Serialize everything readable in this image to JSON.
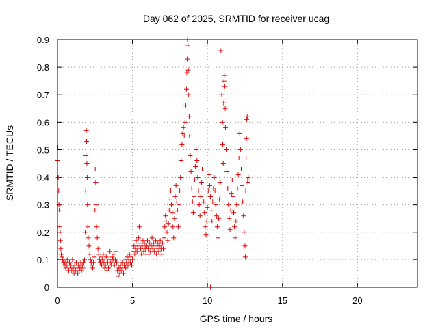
{
  "chart_data": {
    "type": "scatter",
    "title": "Day 062 of 2025, SRMTID for receiver ucag",
    "xlabel": "GPS time / hours",
    "ylabel": "SRMTID / TECUs",
    "xlim": [
      0,
      24
    ],
    "ylim": [
      0,
      0.9
    ],
    "xticks": [
      0,
      5,
      10,
      15,
      20
    ],
    "yticks": [
      0,
      0.1,
      0.2,
      0.3,
      0.4,
      0.5,
      0.6,
      0.7,
      0.8,
      0.9
    ],
    "grid": true,
    "marker": "plus",
    "color": "#e00000",
    "series": [
      {
        "name": "SRMTID",
        "points": [
          [
            0.0,
            0.46
          ],
          [
            0.02,
            0.51
          ],
          [
            0.05,
            0.4
          ],
          [
            0.08,
            0.35
          ],
          [
            0.1,
            0.3
          ],
          [
            0.12,
            0.28
          ],
          [
            0.15,
            0.22
          ],
          [
            0.18,
            0.2
          ],
          [
            0.2,
            0.17
          ],
          [
            0.22,
            0.14
          ],
          [
            0.25,
            0.12
          ],
          [
            0.3,
            0.11
          ],
          [
            0.35,
            0.1
          ],
          [
            0.4,
            0.09
          ],
          [
            0.45,
            0.08
          ],
          [
            0.5,
            0.09
          ],
          [
            0.55,
            0.07
          ],
          [
            0.6,
            0.08
          ],
          [
            0.65,
            0.1
          ],
          [
            0.7,
            0.08
          ],
          [
            0.75,
            0.06
          ],
          [
            0.8,
            0.09
          ],
          [
            0.85,
            0.07
          ],
          [
            0.9,
            0.08
          ],
          [
            0.95,
            0.06
          ],
          [
            1.0,
            0.1
          ],
          [
            1.05,
            0.07
          ],
          [
            1.1,
            0.05
          ],
          [
            1.15,
            0.08
          ],
          [
            1.2,
            0.06
          ],
          [
            1.25,
            0.09
          ],
          [
            1.3,
            0.07
          ],
          [
            1.35,
            0.05
          ],
          [
            1.4,
            0.08
          ],
          [
            1.45,
            0.06
          ],
          [
            1.5,
            0.07
          ],
          [
            1.55,
            0.09
          ],
          [
            1.6,
            0.06
          ],
          [
            1.65,
            0.08
          ],
          [
            1.7,
            0.07
          ],
          [
            1.75,
            0.09
          ],
          [
            1.8,
            0.1
          ],
          [
            1.85,
            0.2
          ],
          [
            1.88,
            0.35
          ],
          [
            1.9,
            0.48
          ],
          [
            1.92,
            0.57
          ],
          [
            1.94,
            0.53
          ],
          [
            1.96,
            0.45
          ],
          [
            1.98,
            0.4
          ],
          [
            2.0,
            0.3
          ],
          [
            2.02,
            0.22
          ],
          [
            2.05,
            0.18
          ],
          [
            2.1,
            0.15
          ],
          [
            2.15,
            0.12
          ],
          [
            2.2,
            0.1
          ],
          [
            2.25,
            0.09
          ],
          [
            2.3,
            0.08
          ],
          [
            2.35,
            0.07
          ],
          [
            2.4,
            0.09
          ],
          [
            2.45,
            0.11
          ],
          [
            2.5,
            0.28
          ],
          [
            2.52,
            0.43
          ],
          [
            2.55,
            0.38
          ],
          [
            2.58,
            0.3
          ],
          [
            2.6,
            0.22
          ],
          [
            2.65,
            0.18
          ],
          [
            2.7,
            0.14
          ],
          [
            2.75,
            0.12
          ],
          [
            2.8,
            0.1
          ],
          [
            2.85,
            0.09
          ],
          [
            2.9,
            0.11
          ],
          [
            2.95,
            0.08
          ],
          [
            3.0,
            0.1
          ],
          [
            3.05,
            0.12
          ],
          [
            3.1,
            0.09
          ],
          [
            3.15,
            0.07
          ],
          [
            3.2,
            0.08
          ],
          [
            3.25,
            0.11
          ],
          [
            3.3,
            0.06
          ],
          [
            3.35,
            0.09
          ],
          [
            3.4,
            0.07
          ],
          [
            3.45,
            0.1
          ],
          [
            3.5,
            0.13
          ],
          [
            3.55,
            0.09
          ],
          [
            3.6,
            0.08
          ],
          [
            3.65,
            0.11
          ],
          [
            3.7,
            0.1
          ],
          [
            3.75,
            0.12
          ],
          [
            3.8,
            0.08
          ],
          [
            3.85,
            0.1
          ],
          [
            3.9,
            0.13
          ],
          [
            3.95,
            0.09
          ],
          [
            4.0,
            0.06
          ],
          [
            4.05,
            0.04
          ],
          [
            4.1,
            0.07
          ],
          [
            4.15,
            0.05
          ],
          [
            4.2,
            0.08
          ],
          [
            4.25,
            0.06
          ],
          [
            4.3,
            0.09
          ],
          [
            4.35,
            0.07
          ],
          [
            4.4,
            0.05
          ],
          [
            4.45,
            0.08
          ],
          [
            4.5,
            0.1
          ],
          [
            4.55,
            0.07
          ],
          [
            4.6,
            0.09
          ],
          [
            4.65,
            0.11
          ],
          [
            4.7,
            0.08
          ],
          [
            4.75,
            0.1
          ],
          [
            4.8,
            0.12
          ],
          [
            4.85,
            0.09
          ],
          [
            4.9,
            0.11
          ],
          [
            4.95,
            0.08
          ],
          [
            5.0,
            0.1
          ],
          [
            5.05,
            0.13
          ],
          [
            5.1,
            0.15
          ],
          [
            5.15,
            0.12
          ],
          [
            5.2,
            0.14
          ],
          [
            5.25,
            0.17
          ],
          [
            5.3,
            0.13
          ],
          [
            5.35,
            0.15
          ],
          [
            5.4,
            0.18
          ],
          [
            5.45,
            0.22
          ],
          [
            5.5,
            0.16
          ],
          [
            5.55,
            0.14
          ],
          [
            5.6,
            0.12
          ],
          [
            5.65,
            0.15
          ],
          [
            5.7,
            0.17
          ],
          [
            5.75,
            0.13
          ],
          [
            5.8,
            0.16
          ],
          [
            5.85,
            0.14
          ],
          [
            5.9,
            0.12
          ],
          [
            5.95,
            0.15
          ],
          [
            6.0,
            0.17
          ],
          [
            6.05,
            0.14
          ],
          [
            6.1,
            0.12
          ],
          [
            6.15,
            0.16
          ],
          [
            6.2,
            0.13
          ],
          [
            6.25,
            0.15
          ],
          [
            6.3,
            0.18
          ],
          [
            6.35,
            0.14
          ],
          [
            6.4,
            0.16
          ],
          [
            6.45,
            0.13
          ],
          [
            6.5,
            0.15
          ],
          [
            6.55,
            0.17
          ],
          [
            6.6,
            0.12
          ],
          [
            6.65,
            0.14
          ],
          [
            6.7,
            0.16
          ],
          [
            6.75,
            0.13
          ],
          [
            6.8,
            0.15
          ],
          [
            6.85,
            0.17
          ],
          [
            6.9,
            0.14
          ],
          [
            6.95,
            0.12
          ],
          [
            7.0,
            0.16
          ],
          [
            7.05,
            0.14
          ],
          [
            7.1,
            0.18
          ],
          [
            7.15,
            0.22
          ],
          [
            7.2,
            0.26
          ],
          [
            7.25,
            0.24
          ],
          [
            7.3,
            0.2
          ],
          [
            7.35,
            0.17
          ],
          [
            7.4,
            0.23
          ],
          [
            7.45,
            0.28
          ],
          [
            7.5,
            0.32
          ],
          [
            7.55,
            0.35
          ],
          [
            7.6,
            0.3
          ],
          [
            7.65,
            0.27
          ],
          [
            7.7,
            0.22
          ],
          [
            7.75,
            0.18
          ],
          [
            7.8,
            0.25
          ],
          [
            7.85,
            0.33
          ],
          [
            7.9,
            0.37
          ],
          [
            7.95,
            0.31
          ],
          [
            8.0,
            0.28
          ],
          [
            8.05,
            0.22
          ],
          [
            8.1,
            0.3
          ],
          [
            8.15,
            0.35
          ],
          [
            8.2,
            0.4
          ],
          [
            8.25,
            0.46
          ],
          [
            8.3,
            0.52
          ],
          [
            8.35,
            0.56
          ],
          [
            8.4,
            0.58
          ],
          [
            8.45,
            0.55
          ],
          [
            8.5,
            0.6
          ],
          [
            8.55,
            0.66
          ],
          [
            8.6,
            0.72
          ],
          [
            8.62,
            0.78
          ],
          [
            8.65,
            0.83
          ],
          [
            8.67,
            0.9
          ],
          [
            8.7,
            0.88
          ],
          [
            8.72,
            0.79
          ],
          [
            8.75,
            0.7
          ],
          [
            8.78,
            0.62
          ],
          [
            8.8,
            0.55
          ],
          [
            8.85,
            0.48
          ],
          [
            8.9,
            0.42
          ],
          [
            8.95,
            0.36
          ],
          [
            9.0,
            0.31
          ],
          [
            9.05,
            0.27
          ],
          [
            9.1,
            0.33
          ],
          [
            9.15,
            0.39
          ],
          [
            9.2,
            0.44
          ],
          [
            9.25,
            0.5
          ],
          [
            9.3,
            0.46
          ],
          [
            9.35,
            0.4
          ],
          [
            9.4,
            0.35
          ],
          [
            9.45,
            0.3
          ],
          [
            9.5,
            0.26
          ],
          [
            9.55,
            0.33
          ],
          [
            9.6,
            0.38
          ],
          [
            9.65,
            0.43
          ],
          [
            9.7,
            0.36
          ],
          [
            9.75,
            0.31
          ],
          [
            9.8,
            0.27
          ],
          [
            9.85,
            0.22
          ],
          [
            9.9,
            0.19
          ],
          [
            9.95,
            0.24
          ],
          [
            10.0,
            0.29
          ],
          [
            10.05,
            0.35
          ],
          [
            10.1,
            0.41
          ],
          [
            10.15,
            0.37
          ],
          [
            10.2,
            0.33
          ],
          [
            10.25,
            0.28
          ],
          [
            10.3,
            0.24
          ],
          [
            10.35,
            0.31
          ],
          [
            10.4,
            0.36
          ],
          [
            10.45,
            0.4
          ],
          [
            10.5,
            0.35
          ],
          [
            10.55,
            0.3
          ],
          [
            10.6,
            0.26
          ],
          [
            10.65,
            0.22
          ],
          [
            10.7,
            0.18
          ],
          [
            10.75,
            0.25
          ],
          [
            10.8,
            0.32
          ],
          [
            10.85,
            0.38
          ],
          [
            10.9,
            0.86
          ],
          [
            10.95,
            0.7
          ],
          [
            11.0,
            0.6
          ],
          [
            11.02,
            0.52
          ],
          [
            11.05,
            0.45
          ],
          [
            11.08,
            0.67
          ],
          [
            11.1,
            0.75
          ],
          [
            11.12,
            0.77
          ],
          [
            11.15,
            0.73
          ],
          [
            11.18,
            0.65
          ],
          [
            11.2,
            0.58
          ],
          [
            11.25,
            0.5
          ],
          [
            11.3,
            0.42
          ],
          [
            11.35,
            0.36
          ],
          [
            11.4,
            0.3
          ],
          [
            11.45,
            0.25
          ],
          [
            11.5,
            0.21
          ],
          [
            11.55,
            0.28
          ],
          [
            11.6,
            0.34
          ],
          [
            11.65,
            0.39
          ],
          [
            11.7,
            0.33
          ],
          [
            11.75,
            0.27
          ],
          [
            11.8,
            0.22
          ],
          [
            11.85,
            0.18
          ],
          [
            11.9,
            0.24
          ],
          [
            11.95,
            0.3
          ],
          [
            12.0,
            0.36
          ],
          [
            12.05,
            0.41
          ],
          [
            12.1,
            0.47
          ],
          [
            12.15,
            0.56
          ],
          [
            12.2,
            0.5
          ],
          [
            12.25,
            0.43
          ],
          [
            12.3,
            0.37
          ],
          [
            12.35,
            0.31
          ],
          [
            12.4,
            0.26
          ],
          [
            12.45,
            0.2
          ],
          [
            12.5,
            0.15
          ],
          [
            12.52,
            0.11
          ],
          [
            12.55,
            0.35
          ],
          [
            12.58,
            0.47
          ],
          [
            12.6,
            0.54
          ],
          [
            12.62,
            0.61
          ],
          [
            12.65,
            0.62
          ],
          [
            12.68,
            0.39
          ],
          [
            12.7,
            0.38
          ],
          [
            12.72,
            0.4
          ],
          [
            10.2,
            0.0
          ]
        ]
      }
    ]
  }
}
